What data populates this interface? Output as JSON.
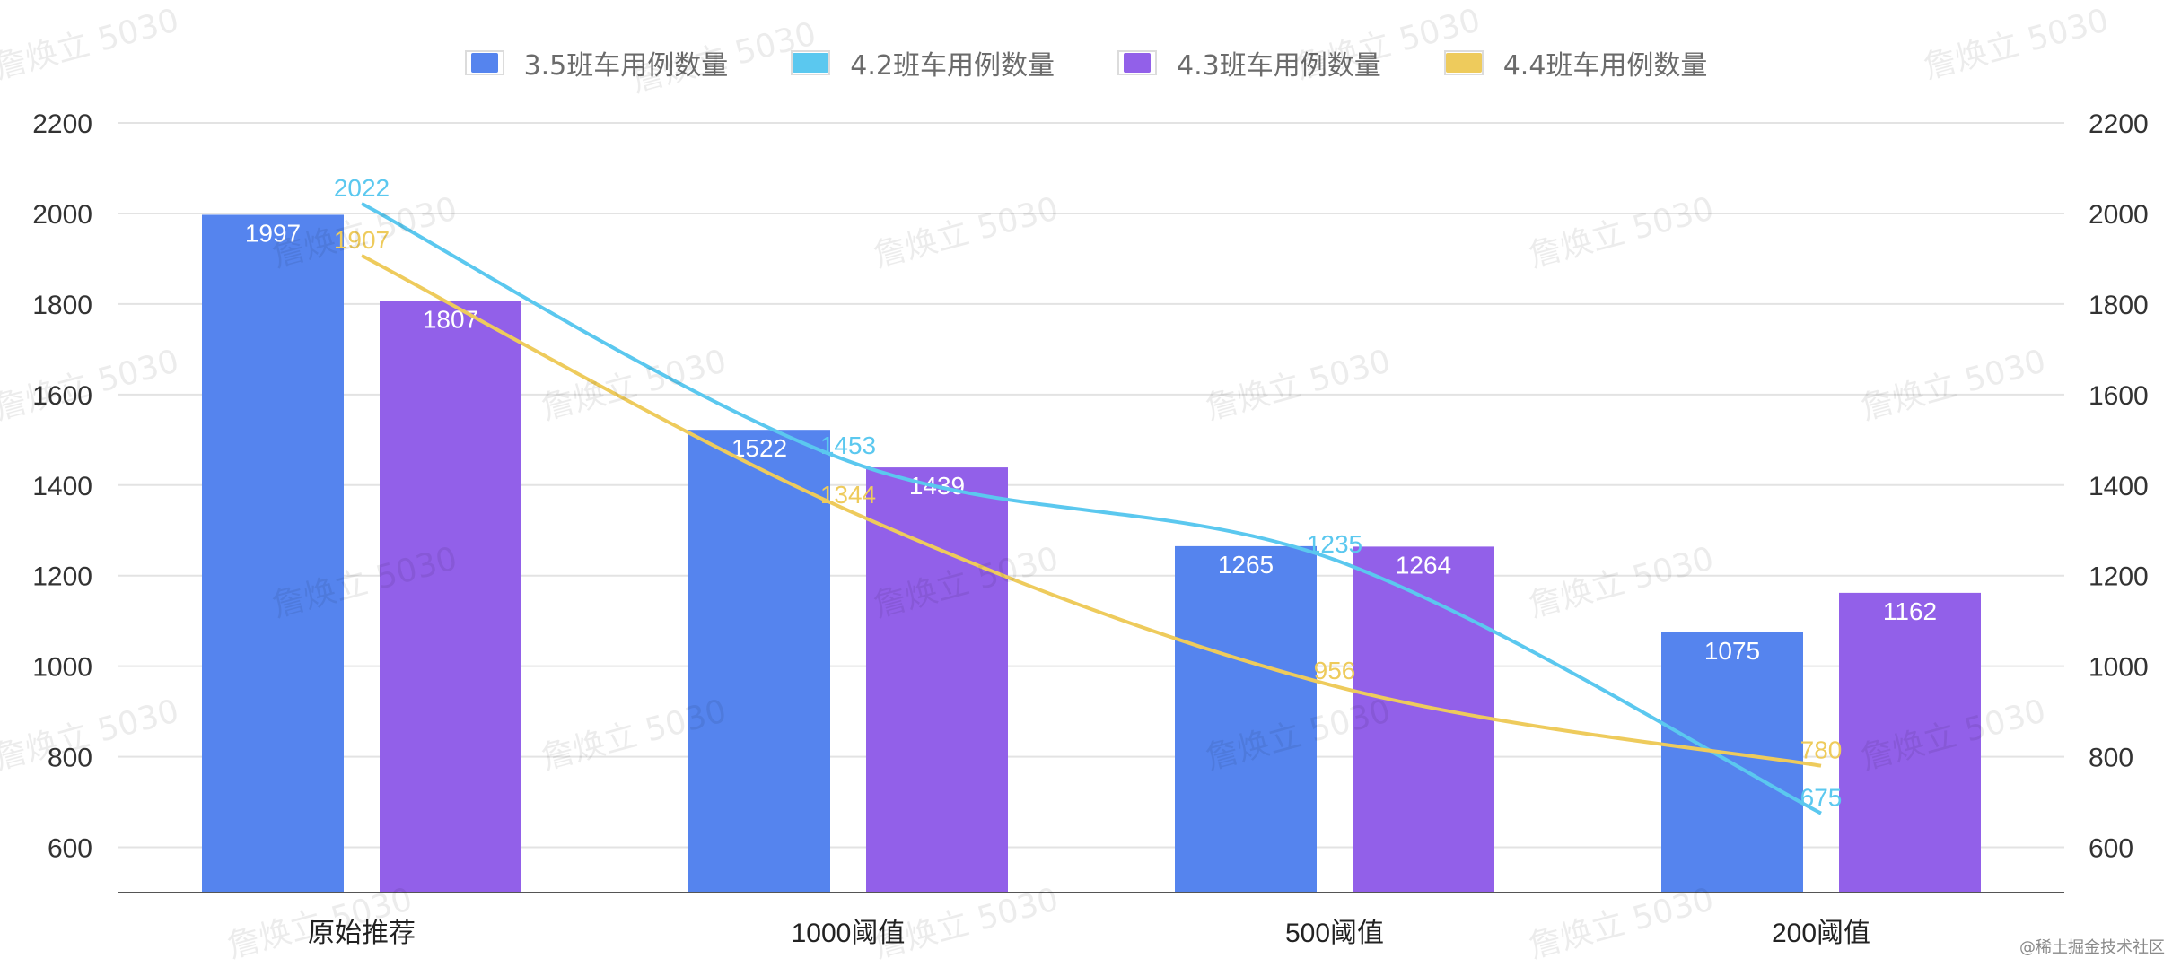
{
  "legend": [
    {
      "label": "3.5班车用例数量",
      "color": "#5584EE"
    },
    {
      "label": "4.2班车用例数量",
      "color": "#5BC8EF"
    },
    {
      "label": "4.3班车用例数量",
      "color": "#9260E9"
    },
    {
      "label": "4.4班车用例数量",
      "color": "#EECB5C"
    }
  ],
  "watermark": "詹焕立 5030",
  "credit": "@稀土掘金技术社区",
  "chart_data": {
    "type": "bar",
    "categories": [
      "原始推荐",
      "1000阈值",
      "500阈值",
      "200阈值"
    ],
    "ylim": [
      500,
      2200
    ],
    "yticks": [
      600,
      800,
      1000,
      1200,
      1400,
      1600,
      1800,
      2000,
      2200
    ],
    "series": [
      {
        "name": "3.5班车用例数量",
        "kind": "bar",
        "color": "#5584EE",
        "values": [
          1997,
          1522,
          1265,
          1075
        ]
      },
      {
        "name": "4.2班车用例数量",
        "kind": "line",
        "color": "#5BC8EF",
        "values": [
          2022,
          1453,
          1235,
          675
        ]
      },
      {
        "name": "4.3班车用例数量",
        "kind": "bar",
        "color": "#9260E9",
        "values": [
          1807,
          1439,
          1264,
          1162
        ]
      },
      {
        "name": "4.4班车用例数量",
        "kind": "line",
        "color": "#EECB5C",
        "values": [
          1907,
          1344,
          956,
          780
        ]
      }
    ]
  }
}
